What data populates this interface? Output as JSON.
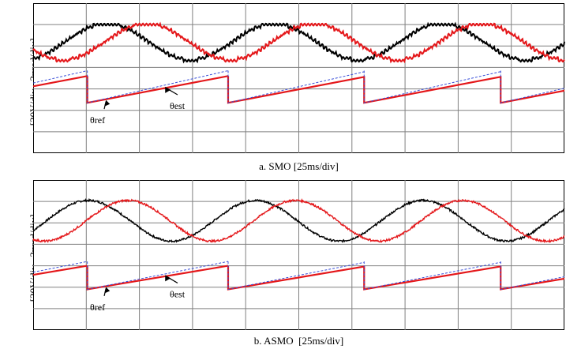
{
  "panels": [
    {
      "id": "a",
      "caption": "a. SMO [25ms/div]",
      "y_label_volt": "[20V/div",
      "y_label_rad": "2πrad/div]",
      "theta_ref_label": "θref",
      "theta_est_label": "θest",
      "colors": {
        "black": "#000000",
        "red": "#e4171a",
        "blue": "#3a4fd8",
        "grid": "#808080"
      }
    },
    {
      "id": "b",
      "caption": "b. ASMO  [25ms/div]",
      "y_label_volt": "[20V/div",
      "y_label_rad": "2πrad/div]",
      "theta_ref_label": "θref",
      "theta_est_label": "θest",
      "colors": {
        "black": "#000000",
        "red": "#e4171a",
        "blue": "#3a4fd8",
        "grid": "#808080"
      }
    }
  ],
  "chart_data": [
    {
      "type": "line",
      "title": "a. SMO [25ms/div]",
      "xlabel": "[25ms/div]",
      "ylabel": "[20V/div  2πrad/div]",
      "grid": true,
      "x_divisions": 10,
      "y_divisions": 7,
      "series": [
        {
          "name": "black voltage",
          "kind": "sine",
          "period_div": 3.15,
          "phase_div": 0.6,
          "amplitude_div": 0.85,
          "offset_div": 5.2,
          "distortion": "stepped"
        },
        {
          "name": "red voltage",
          "kind": "sine",
          "period_div": 3.15,
          "phase_div": 1.35,
          "amplitude_div": 0.85,
          "offset_div": 5.2,
          "distortion": "stepped"
        },
        {
          "name": "θref",
          "kind": "sawtooth",
          "resets_div": [
            1.02,
            3.67,
            6.23,
            8.8
          ],
          "low_div": 2.35,
          "high_div": 3.6
        },
        {
          "name": "θest",
          "kind": "sawtooth",
          "resets_div": [
            1.02,
            3.67,
            6.23,
            8.8
          ],
          "low_div": 2.35,
          "high_div": 3.85
        }
      ]
    },
    {
      "type": "line",
      "title": "b. ASMO  [25ms/div]",
      "xlabel": "[25ms/div]",
      "ylabel": "[20V/div  2πrad/div]",
      "grid": true,
      "x_divisions": 10,
      "y_divisions": 7,
      "series": [
        {
          "name": "black voltage",
          "kind": "sine",
          "period_div": 3.15,
          "phase_div": 0.25,
          "amplitude_div": 0.95,
          "offset_div": 5.1,
          "distortion": "noisy"
        },
        {
          "name": "red voltage",
          "kind": "sine",
          "period_div": 3.15,
          "phase_div": 1.0,
          "amplitude_div": 0.95,
          "offset_div": 5.1,
          "distortion": "noisy"
        },
        {
          "name": "θref",
          "kind": "sawtooth",
          "resets_div": [
            1.02,
            3.67,
            6.23,
            8.8
          ],
          "low_div": 1.9,
          "high_div": 3.0
        },
        {
          "name": "θest",
          "kind": "sawtooth",
          "resets_div": [
            1.02,
            3.67,
            6.23,
            8.8
          ],
          "low_div": 1.9,
          "high_div": 3.2
        }
      ]
    }
  ]
}
